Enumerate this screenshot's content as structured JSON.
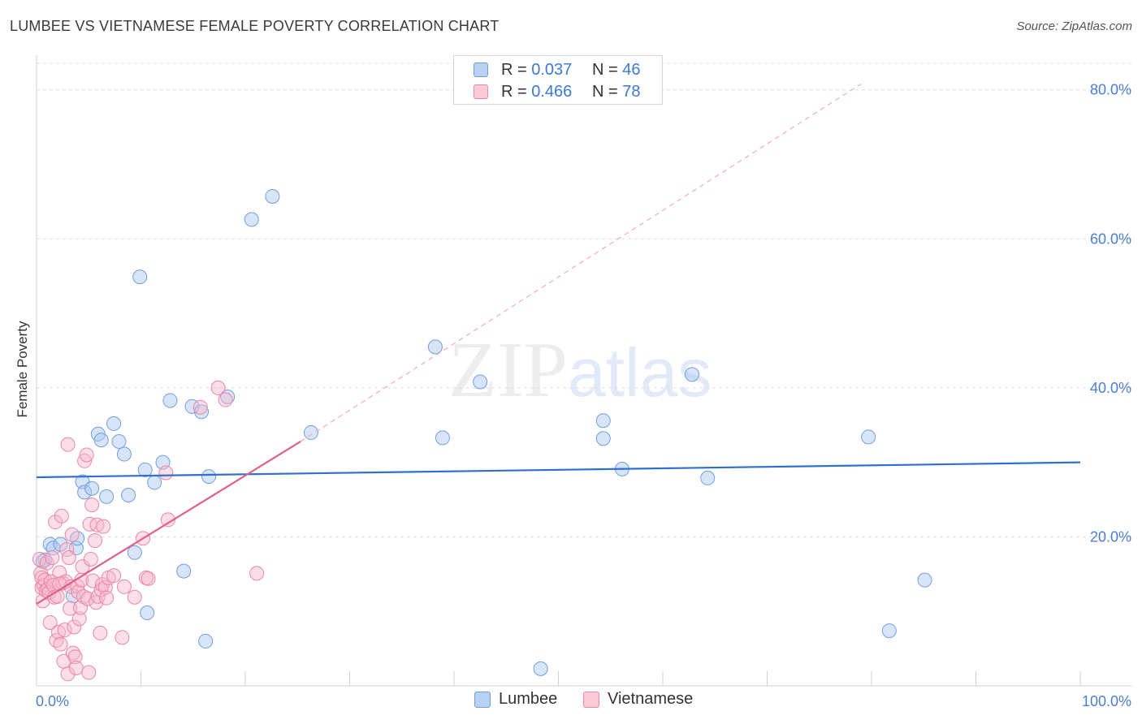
{
  "chart_data": {
    "type": "scatter",
    "title": "LUMBEE VS VIETNAMESE FEMALE POVERTY CORRELATION CHART",
    "source": "Source: ZipAtlas.com",
    "ylabel": "Female Poverty",
    "xlabel": "",
    "xlim": [
      0,
      100
    ],
    "ylim": [
      0,
      84
    ],
    "x_tick_labels": [
      "0.0%",
      "100.0%"
    ],
    "y_ticks": [
      20,
      40,
      60,
      80
    ],
    "y_tick_labels": [
      "20.0%",
      "40.0%",
      "60.0%",
      "80.0%"
    ],
    "grid": true,
    "legend": [
      {
        "r_label": "R =",
        "r_value": "0.037",
        "n_label": "N =",
        "n_value": "46"
      },
      {
        "r_label": "R =",
        "r_value": "0.466",
        "n_label": "N =",
        "n_value": "78"
      }
    ],
    "series": [
      {
        "name": "Lumbee",
        "color": "#a9c6f0",
        "edge_color": "#6f9fe0",
        "trend_color": "#2f6fd0",
        "trend": {
          "x0": 0,
          "y0": 28.0,
          "x1": 100,
          "y1": 30.0
        },
        "points": [
          [
            0.8,
            16.9
          ],
          [
            1.3,
            19.0
          ],
          [
            1.6,
            18.5
          ],
          [
            2.3,
            19.0
          ],
          [
            3.5,
            12.1
          ],
          [
            3.8,
            18.5
          ],
          [
            3.9,
            19.8
          ],
          [
            4.4,
            27.4
          ],
          [
            4.6,
            26.0
          ],
          [
            5.3,
            26.5
          ],
          [
            5.9,
            33.8
          ],
          [
            6.2,
            33.0
          ],
          [
            6.7,
            25.4
          ],
          [
            7.4,
            35.2
          ],
          [
            7.9,
            32.8
          ],
          [
            8.4,
            31.1
          ],
          [
            8.8,
            25.6
          ],
          [
            9.4,
            17.9
          ],
          [
            9.9,
            54.9
          ],
          [
            10.4,
            29.0
          ],
          [
            10.6,
            9.8
          ],
          [
            11.3,
            27.3
          ],
          [
            12.1,
            30.0
          ],
          [
            12.8,
            38.3
          ],
          [
            14.1,
            15.4
          ],
          [
            14.9,
            37.5
          ],
          [
            15.8,
            36.8
          ],
          [
            16.2,
            6.0
          ],
          [
            16.5,
            28.1
          ],
          [
            18.3,
            38.8
          ],
          [
            20.6,
            62.6
          ],
          [
            22.6,
            65.7
          ],
          [
            26.3,
            34.0
          ],
          [
            38.2,
            45.5
          ],
          [
            38.9,
            33.3
          ],
          [
            42.5,
            40.8
          ],
          [
            48.3,
            2.3
          ],
          [
            54.3,
            35.6
          ],
          [
            54.3,
            33.2
          ],
          [
            56.1,
            29.1
          ],
          [
            62.8,
            41.8
          ],
          [
            64.3,
            27.9
          ],
          [
            79.7,
            33.4
          ],
          [
            81.7,
            7.4
          ],
          [
            85.1,
            14.2
          ],
          [
            0.6,
            16.7
          ]
        ]
      },
      {
        "name": "Vietnamese",
        "color": "#f7b8cc",
        "edge_color": "#ec86a6",
        "trend_color": "#e0608d",
        "trend": {
          "x0": 0,
          "y0": 11.0,
          "x1": 25.3,
          "y1": 32.8
        },
        "trend_ext": {
          "x0": 25.3,
          "y0": 32.8,
          "x1": 79.0,
          "y1": 80.8
        },
        "points": [
          [
            0.3,
            17.0
          ],
          [
            0.4,
            15.1
          ],
          [
            0.5,
            14.5
          ],
          [
            0.5,
            13.2
          ],
          [
            0.6,
            11.4
          ],
          [
            0.7,
            13.5
          ],
          [
            0.8,
            14.2
          ],
          [
            0.9,
            12.8
          ],
          [
            1.0,
            16.5
          ],
          [
            1.1,
            13.0
          ],
          [
            1.2,
            12.5
          ],
          [
            1.3,
            8.5
          ],
          [
            1.4,
            14.0
          ],
          [
            1.5,
            17.2
          ],
          [
            1.6,
            13.5
          ],
          [
            1.7,
            11.9
          ],
          [
            1.8,
            22.0
          ],
          [
            1.9,
            6.1
          ],
          [
            2.0,
            12.0
          ],
          [
            2.1,
            7.2
          ],
          [
            2.2,
            15.2
          ],
          [
            2.3,
            5.6
          ],
          [
            2.4,
            22.8
          ],
          [
            2.5,
            13.8
          ],
          [
            2.6,
            3.3
          ],
          [
            2.7,
            7.5
          ],
          [
            2.8,
            14.0
          ],
          [
            2.9,
            18.3
          ],
          [
            3.0,
            1.6
          ],
          [
            3.1,
            17.2
          ],
          [
            3.2,
            10.4
          ],
          [
            3.3,
            13.3
          ],
          [
            3.4,
            20.3
          ],
          [
            3.5,
            4.4
          ],
          [
            3.6,
            7.9
          ],
          [
            3.7,
            3.9
          ],
          [
            3.8,
            2.4
          ],
          [
            3.9,
            13.4
          ],
          [
            4.0,
            12.6
          ],
          [
            4.1,
            9.0
          ],
          [
            4.2,
            10.5
          ],
          [
            4.3,
            14.2
          ],
          [
            4.4,
            16.0
          ],
          [
            4.5,
            12.0
          ],
          [
            4.6,
            30.2
          ],
          [
            4.8,
            31.0
          ],
          [
            4.9,
            11.7
          ],
          [
            5.0,
            1.8
          ],
          [
            5.1,
            21.7
          ],
          [
            5.2,
            17.0
          ],
          [
            5.3,
            24.3
          ],
          [
            5.4,
            14.1
          ],
          [
            5.6,
            19.5
          ],
          [
            5.7,
            11.2
          ],
          [
            5.8,
            21.6
          ],
          [
            5.9,
            12.0
          ],
          [
            6.1,
            7.1
          ],
          [
            6.2,
            12.9
          ],
          [
            6.3,
            13.6
          ],
          [
            6.4,
            21.4
          ],
          [
            6.6,
            13.2
          ],
          [
            6.7,
            11.8
          ],
          [
            6.9,
            14.5
          ],
          [
            7.4,
            14.8
          ],
          [
            8.2,
            6.5
          ],
          [
            8.4,
            13.3
          ],
          [
            9.4,
            11.9
          ],
          [
            10.2,
            19.8
          ],
          [
            10.5,
            14.5
          ],
          [
            12.4,
            28.6
          ],
          [
            12.6,
            22.3
          ],
          [
            15.7,
            37.4
          ],
          [
            17.4,
            40.0
          ],
          [
            18.1,
            38.4
          ],
          [
            21.1,
            15.1
          ],
          [
            3.0,
            32.4
          ],
          [
            2.2,
            13.7
          ],
          [
            10.7,
            14.4
          ]
        ]
      }
    ]
  },
  "watermark": {
    "zip": "ZIP",
    "atlas": "atlas"
  }
}
